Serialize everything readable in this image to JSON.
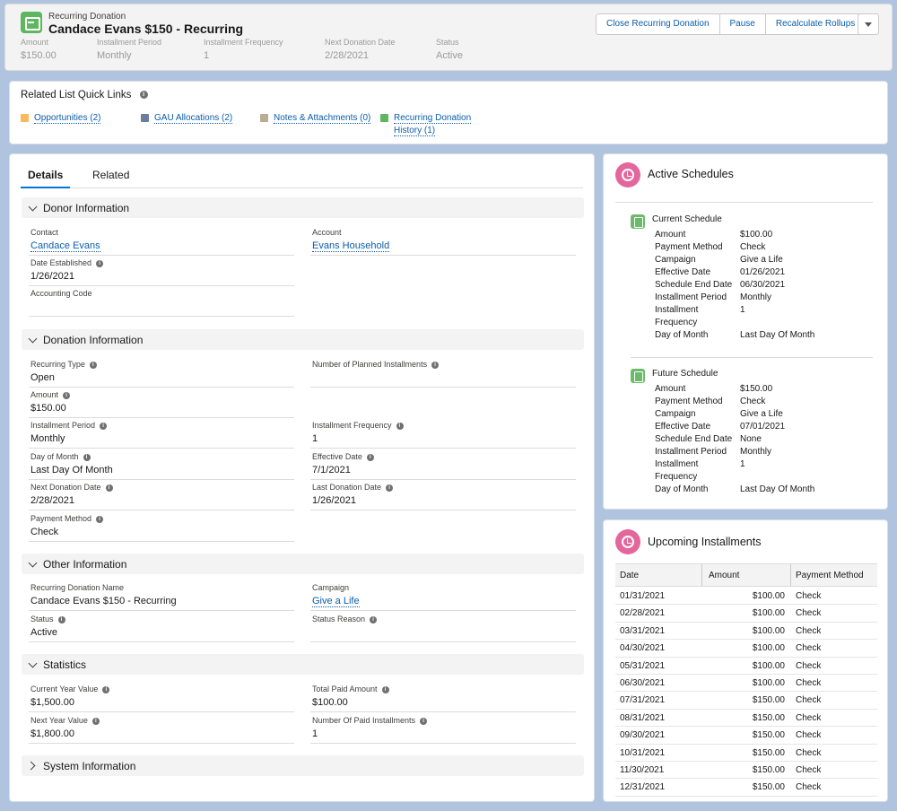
{
  "header": {
    "object_type": "Recurring Donation",
    "title": "Candace Evans $150 - Recurring",
    "fields": [
      {
        "label": "Amount",
        "value": "$150.00"
      },
      {
        "label": "Installment Period",
        "value": "Monthly"
      },
      {
        "label": "Installment Frequency",
        "value": "1"
      },
      {
        "label": "Next Donation Date",
        "value": "2/28/2021"
      },
      {
        "label": "Status",
        "value": "Active"
      }
    ],
    "buttons": {
      "close": "Close Recurring Donation",
      "pause": "Pause",
      "recalc": "Recalculate Rollups"
    }
  },
  "quick_links": {
    "title": "Related List Quick Links",
    "links": [
      {
        "label": "Opportunities (2)"
      },
      {
        "label": "GAU Allocations (2)"
      },
      {
        "label": "Notes & Attachments (0)"
      },
      {
        "label_1": "Recurring Donation",
        "label_2": "History (1)"
      }
    ]
  },
  "tabs": {
    "details": "Details",
    "related": "Related"
  },
  "sections": {
    "donor": {
      "title": "Donor Information",
      "contact": {
        "label": "Contact",
        "value": "Candace Evans"
      },
      "account": {
        "label": "Account",
        "value": "Evans Household"
      },
      "date_established": {
        "label": "Date Established",
        "value": "1/26/2021"
      },
      "accounting_code": {
        "label": "Accounting Code",
        "value": ""
      }
    },
    "donation": {
      "title": "Donation Information",
      "recurring_type": {
        "label": "Recurring Type",
        "value": "Open"
      },
      "planned_installments": {
        "label": "Number of Planned Installments",
        "value": ""
      },
      "amount": {
        "label": "Amount",
        "value": "$150.00"
      },
      "installment_period": {
        "label": "Installment Period",
        "value": "Monthly"
      },
      "installment_frequency": {
        "label": "Installment Frequency",
        "value": "1"
      },
      "day_of_month": {
        "label": "Day of Month",
        "value": "Last Day Of Month"
      },
      "effective_date": {
        "label": "Effective Date",
        "value": "7/1/2021"
      },
      "next_donation_date": {
        "label": "Next Donation Date",
        "value": "2/28/2021"
      },
      "last_donation_date": {
        "label": "Last Donation Date",
        "value": "1/26/2021"
      },
      "payment_method": {
        "label": "Payment Method",
        "value": "Check"
      }
    },
    "other": {
      "title": "Other Information",
      "name": {
        "label": "Recurring Donation Name",
        "value": "Candace Evans $150 - Recurring"
      },
      "campaign": {
        "label": "Campaign",
        "value": "Give a Life"
      },
      "status": {
        "label": "Status",
        "value": "Active"
      },
      "status_reason": {
        "label": "Status Reason",
        "value": ""
      }
    },
    "statistics": {
      "title": "Statistics",
      "current_year": {
        "label": "Current Year Value",
        "value": "$1,500.00"
      },
      "total_paid": {
        "label": "Total Paid Amount",
        "value": "$100.00"
      },
      "next_year": {
        "label": "Next Year Value",
        "value": "$1,800.00"
      },
      "paid_installments": {
        "label": "Number Of Paid Installments",
        "value": "1"
      }
    },
    "system": {
      "title": "System Information"
    }
  },
  "active_schedules": {
    "title": "Active Schedules",
    "labels": {
      "amount": "Amount",
      "payment_method": "Payment Method",
      "campaign": "Campaign",
      "effective_date": "Effective Date",
      "end_date": "Schedule End Date",
      "period": "Installment Period",
      "frequency_1": "Installment",
      "frequency_2": "Frequency",
      "day_of_month": "Day of Month"
    },
    "current": {
      "title": "Current Schedule",
      "amount": "$100.00",
      "payment_method": "Check",
      "campaign": "Give a Life",
      "effective_date": "01/26/2021",
      "end_date": "06/30/2021",
      "period": "Monthly",
      "frequency": "1",
      "day_of_month": "Last Day Of Month"
    },
    "future": {
      "title": "Future Schedule",
      "amount": "$150.00",
      "payment_method": "Check",
      "campaign": "Give a Life",
      "effective_date": "07/01/2021",
      "end_date": "None",
      "period": "Monthly",
      "frequency": "1",
      "day_of_month": "Last Day Of Month"
    }
  },
  "upcoming": {
    "title": "Upcoming Installments",
    "columns": [
      "Date",
      "Amount",
      "Payment Method"
    ],
    "rows": [
      [
        "01/31/2021",
        "$100.00",
        "Check"
      ],
      [
        "02/28/2021",
        "$100.00",
        "Check"
      ],
      [
        "03/31/2021",
        "$100.00",
        "Check"
      ],
      [
        "04/30/2021",
        "$100.00",
        "Check"
      ],
      [
        "05/31/2021",
        "$100.00",
        "Check"
      ],
      [
        "06/30/2021",
        "$100.00",
        "Check"
      ],
      [
        "07/31/2021",
        "$150.00",
        "Check"
      ],
      [
        "08/31/2021",
        "$150.00",
        "Check"
      ],
      [
        "09/30/2021",
        "$150.00",
        "Check"
      ],
      [
        "10/31/2021",
        "$150.00",
        "Check"
      ],
      [
        "11/30/2021",
        "$150.00",
        "Check"
      ],
      [
        "12/31/2021",
        "$150.00",
        "Check"
      ]
    ]
  }
}
